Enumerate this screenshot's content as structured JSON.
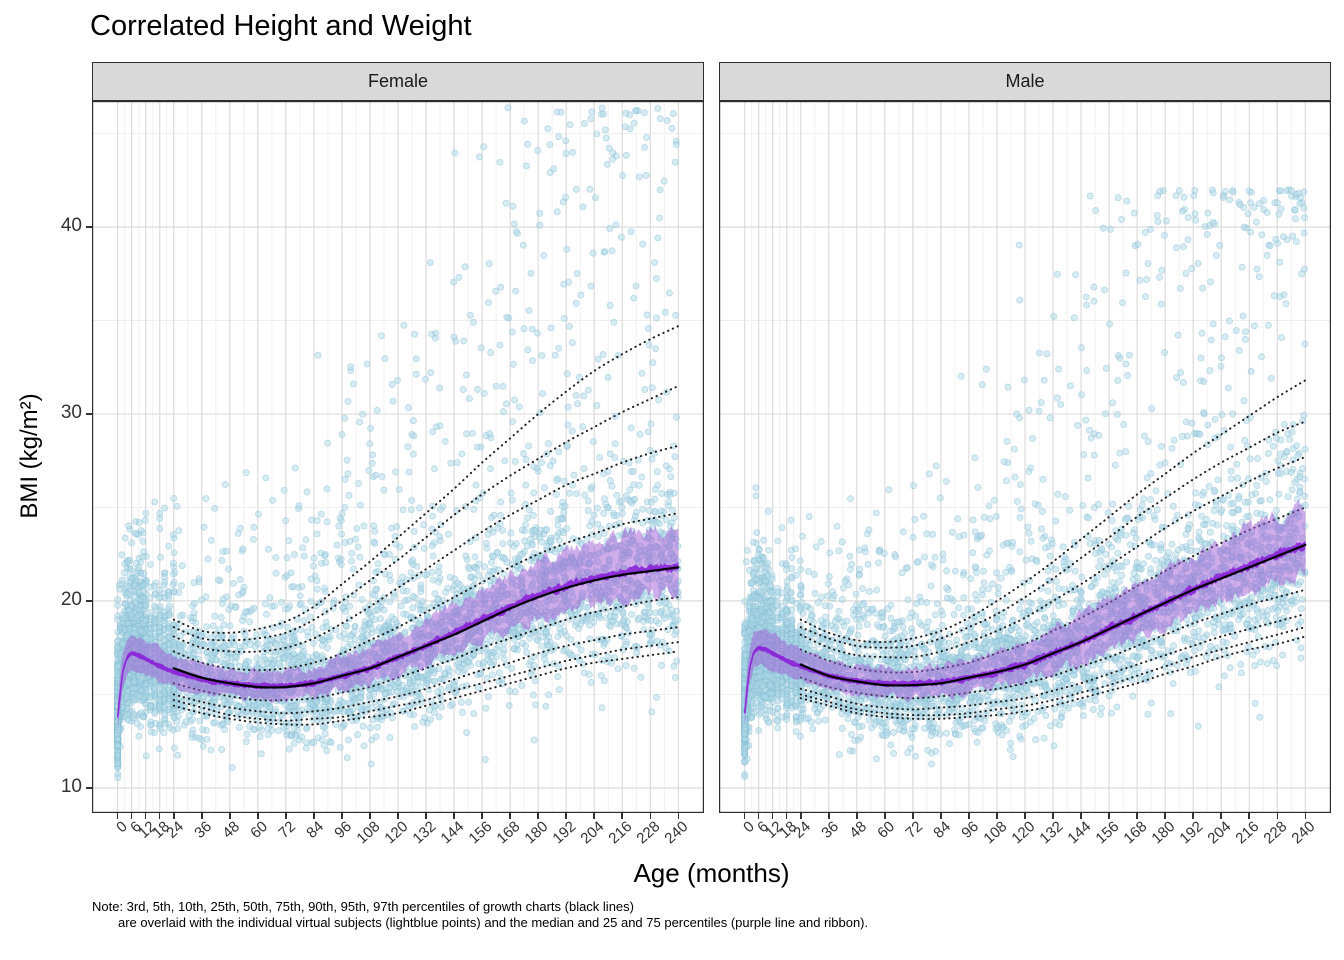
{
  "title": "Correlated Height and Weight",
  "x_axis": {
    "label": "Age (months)",
    "ticks": [
      0,
      6,
      12,
      18,
      24,
      36,
      48,
      60,
      72,
      84,
      96,
      108,
      120,
      132,
      144,
      156,
      168,
      180,
      192,
      204,
      216,
      228,
      240
    ]
  },
  "y_axis": {
    "label": "BMI (kg/m²)",
    "ticks": [
      10,
      20,
      30,
      40
    ],
    "minor_ticks": [
      15,
      25,
      35,
      45
    ]
  },
  "note": {
    "line1": "Note: 3rd, 5th, 10th, 25th, 50th, 75th, 90th, 95th, 97th percentiles of growth charts (black lines)",
    "line2": "are overlaid with the individual virtual subjects (lightblue points) and the median and 25 and 75 percentiles (purple line and ribbon)."
  },
  "colors": {
    "points": "#ADD8E6",
    "points_stroke": "#7DB9D2",
    "ribbon": "#A05AD6",
    "median_line": "#8B27D8",
    "growth_lines": "#1F1F1F",
    "growth_median": "#000000",
    "strip_bg": "#D9D9D9",
    "panel_border": "#2E2E2E",
    "grid_major": "#D8D8D8",
    "grid_minor": "#EFEFEF"
  },
  "chart_data": {
    "type": "scatter",
    "title": "Correlated Height and Weight",
    "xlabel": "Age (months)",
    "ylabel": "BMI (kg/m²)",
    "x_domain": [
      -11,
      251
    ],
    "y_domain": [
      8.66,
      46.74
    ],
    "grid": true,
    "growth_percentile_levels": [
      "3rd",
      "5th",
      "10th",
      "25th",
      "50th",
      "75th",
      "90th",
      "95th",
      "97th"
    ],
    "growth_chart_ages_months": [
      24,
      36,
      48,
      60,
      72,
      84,
      96,
      108,
      120,
      132,
      144,
      156,
      168,
      180,
      192,
      204,
      216,
      228,
      240
    ],
    "subject_curve_ages_months": [
      0,
      2,
      4,
      6,
      9,
      12,
      18,
      24,
      36,
      48,
      60,
      72,
      84,
      96,
      108,
      120,
      132,
      144,
      156,
      168,
      180,
      192,
      204,
      216,
      228,
      240
    ],
    "facets": [
      {
        "label": "Female",
        "growth_percentiles": {
          "p3": [
            14.4,
            14.0,
            13.7,
            13.5,
            13.4,
            13.4,
            13.6,
            13.8,
            14.0,
            14.4,
            14.8,
            15.2,
            15.6,
            16.0,
            16.4,
            16.7,
            16.9,
            17.1,
            17.3
          ],
          "p5": [
            14.7,
            14.3,
            13.9,
            13.7,
            13.6,
            13.7,
            13.8,
            14.1,
            14.4,
            14.7,
            15.2,
            15.6,
            16.0,
            16.4,
            16.8,
            17.1,
            17.4,
            17.6,
            17.8
          ],
          "p10": [
            15.0,
            14.6,
            14.3,
            14.1,
            14.0,
            14.1,
            14.3,
            14.6,
            14.9,
            15.3,
            15.8,
            16.3,
            16.7,
            17.2,
            17.6,
            17.9,
            18.2,
            18.4,
            18.6
          ],
          "p25": [
            15.6,
            15.2,
            14.9,
            14.7,
            14.7,
            14.8,
            15.1,
            15.4,
            15.9,
            16.4,
            16.9,
            17.5,
            18.0,
            18.5,
            19.0,
            19.4,
            19.7,
            20.0,
            20.2
          ],
          "p50": [
            16.4,
            15.9,
            15.6,
            15.4,
            15.4,
            15.6,
            16.0,
            16.4,
            17.0,
            17.6,
            18.2,
            18.9,
            19.6,
            20.2,
            20.7,
            21.1,
            21.4,
            21.6,
            21.8
          ],
          "p75": [
            17.3,
            16.7,
            16.4,
            16.3,
            16.4,
            16.7,
            17.2,
            17.9,
            18.6,
            19.4,
            20.2,
            21.0,
            21.8,
            22.5,
            23.1,
            23.6,
            24.1,
            24.4,
            24.7
          ],
          "p90": [
            18.1,
            17.5,
            17.3,
            17.3,
            17.5,
            18.0,
            18.8,
            19.7,
            20.7,
            21.7,
            22.7,
            23.7,
            24.6,
            25.4,
            26.2,
            26.8,
            27.4,
            27.9,
            28.3
          ],
          "p95": [
            18.6,
            18.0,
            17.9,
            18.0,
            18.3,
            19.0,
            20.0,
            21.1,
            22.2,
            23.4,
            24.6,
            25.7,
            26.7,
            27.6,
            28.5,
            29.3,
            30.1,
            30.8,
            31.5
          ],
          "p97": [
            19.0,
            18.4,
            18.3,
            18.5,
            18.9,
            19.7,
            20.9,
            22.1,
            23.4,
            24.7,
            26.0,
            27.4,
            28.7,
            30.0,
            31.2,
            32.3,
            33.2,
            34.0,
            34.7
          ]
        },
        "subject_median": [
          13.8,
          16.2,
          17.0,
          17.2,
          17.1,
          16.9,
          16.5,
          16.2,
          15.8,
          15.6,
          15.45,
          15.45,
          15.6,
          16.0,
          16.4,
          17.0,
          17.6,
          18.3,
          19.0,
          19.7,
          20.3,
          20.8,
          21.2,
          21.5,
          21.7,
          21.8
        ],
        "subject_q25": [
          13.0,
          15.3,
          16.1,
          16.3,
          16.2,
          16.0,
          15.6,
          15.4,
          15.0,
          14.9,
          14.75,
          14.75,
          14.85,
          15.2,
          15.55,
          16.1,
          16.6,
          17.25,
          17.9,
          18.5,
          19.05,
          19.5,
          19.85,
          20.1,
          20.25,
          20.3
        ],
        "subject_q75": [
          14.7,
          17.2,
          18.0,
          18.2,
          18.1,
          17.9,
          17.45,
          17.1,
          16.65,
          16.4,
          16.25,
          16.3,
          16.5,
          17.0,
          17.5,
          18.2,
          18.95,
          19.8,
          20.6,
          21.4,
          22.1,
          22.7,
          23.15,
          23.5,
          23.75,
          23.9
        ],
        "points": {
          "n": 4800,
          "seed": 12345,
          "y_max": 46.4
        }
      },
      {
        "label": "Male",
        "growth_percentiles": {
          "p3": [
            14.8,
            14.4,
            14.0,
            13.8,
            13.7,
            13.7,
            13.8,
            13.9,
            14.1,
            14.4,
            14.8,
            15.2,
            15.6,
            16.1,
            16.5,
            17.0,
            17.4,
            17.7,
            18.1
          ],
          "p5": [
            15.0,
            14.6,
            14.2,
            14.0,
            13.9,
            13.9,
            14.0,
            14.2,
            14.4,
            14.7,
            15.1,
            15.5,
            16.0,
            16.5,
            17.0,
            17.4,
            17.8,
            18.2,
            18.6
          ],
          "p10": [
            15.3,
            14.9,
            14.5,
            14.3,
            14.2,
            14.3,
            14.4,
            14.6,
            14.8,
            15.2,
            15.6,
            16.1,
            16.6,
            17.1,
            17.6,
            18.1,
            18.5,
            18.9,
            19.3
          ],
          "p25": [
            15.9,
            15.4,
            15.1,
            14.9,
            14.8,
            14.9,
            15.1,
            15.3,
            15.6,
            16.0,
            16.5,
            17.0,
            17.6,
            18.2,
            18.8,
            19.3,
            19.8,
            20.2,
            20.6
          ],
          "p50": [
            16.6,
            16.0,
            15.7,
            15.5,
            15.5,
            15.6,
            15.9,
            16.2,
            16.6,
            17.2,
            17.8,
            18.5,
            19.2,
            19.9,
            20.6,
            21.2,
            21.8,
            22.4,
            23.0
          ],
          "p75": [
            17.4,
            16.8,
            16.4,
            16.2,
            16.2,
            16.4,
            16.7,
            17.2,
            17.7,
            18.4,
            19.1,
            19.9,
            20.8,
            21.6,
            22.4,
            23.1,
            23.8,
            24.4,
            25.0
          ],
          "p90": [
            18.2,
            17.5,
            17.1,
            17.0,
            17.0,
            17.3,
            17.8,
            18.4,
            19.1,
            20.0,
            20.9,
            21.9,
            22.9,
            23.9,
            24.8,
            25.6,
            26.4,
            27.1,
            27.7
          ],
          "p95": [
            18.6,
            18.0,
            17.6,
            17.5,
            17.6,
            18.0,
            18.6,
            19.3,
            20.2,
            21.2,
            22.3,
            23.4,
            24.5,
            25.5,
            26.5,
            27.4,
            28.2,
            29.0,
            29.6
          ],
          "p97": [
            19.0,
            18.3,
            17.9,
            17.8,
            18.0,
            18.4,
            19.1,
            20.0,
            21.0,
            22.1,
            23.3,
            24.5,
            25.7,
            26.8,
            27.9,
            28.9,
            29.9,
            30.9,
            31.8
          ]
        },
        "subject_median": [
          14.0,
          16.4,
          17.3,
          17.5,
          17.4,
          17.2,
          16.8,
          16.5,
          16.0,
          15.7,
          15.6,
          15.55,
          15.65,
          15.9,
          16.2,
          16.6,
          17.2,
          17.8,
          18.5,
          19.2,
          19.9,
          20.6,
          21.3,
          21.9,
          22.5,
          23.0
        ],
        "subject_q25": [
          13.2,
          15.5,
          16.4,
          16.6,
          16.5,
          16.3,
          15.95,
          15.7,
          15.25,
          15.0,
          14.9,
          14.85,
          14.9,
          15.1,
          15.35,
          15.7,
          16.2,
          16.75,
          17.4,
          18.0,
          18.65,
          19.3,
          19.95,
          20.5,
          21.05,
          21.5
        ],
        "subject_q75": [
          14.9,
          17.4,
          18.3,
          18.5,
          18.4,
          18.2,
          17.75,
          17.4,
          16.85,
          16.5,
          16.4,
          16.4,
          16.55,
          16.9,
          17.3,
          17.8,
          18.55,
          19.3,
          20.1,
          20.9,
          21.7,
          22.5,
          23.25,
          23.9,
          24.55,
          25.1
        ],
        "points": {
          "n": 4800,
          "seed": 67890,
          "y_max": 42.0
        }
      }
    ]
  }
}
